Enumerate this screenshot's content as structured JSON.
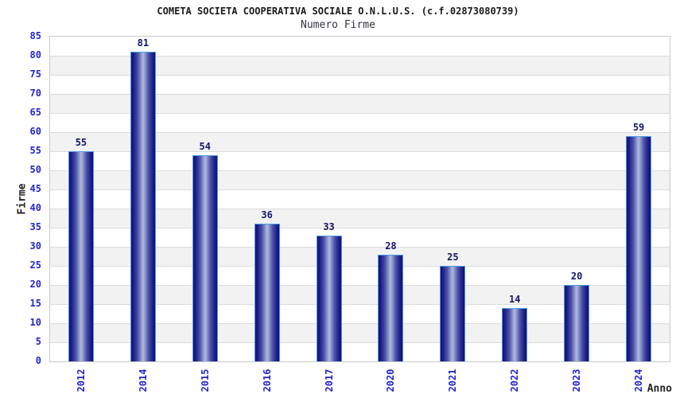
{
  "header": {
    "title": "COMETA SOCIETA COOPERATIVA SOCIALE O.N.L.U.S. (c.f.02873080739)",
    "subtitle": "Numero Firme"
  },
  "chart_data": {
    "type": "bar",
    "title": "COMETA SOCIETA COOPERATIVA SOCIALE O.N.L.U.S. (c.f.02873080739)",
    "subtitle": "Numero Firme",
    "xlabel": "Anno",
    "ylabel": "Firme",
    "categories": [
      "2012",
      "2014",
      "2015",
      "2016",
      "2017",
      "2020",
      "2021",
      "2022",
      "2023",
      "2024"
    ],
    "values": [
      55,
      81,
      54,
      36,
      33,
      28,
      25,
      14,
      20,
      59
    ],
    "yticks": [
      0,
      5,
      10,
      15,
      20,
      25,
      30,
      35,
      40,
      45,
      50,
      55,
      60,
      65,
      70,
      75,
      80,
      85
    ],
    "ylim": [
      0,
      85
    ],
    "ytick_step": 5,
    "grid": "horizontal gridlines with alternating shaded bands",
    "legend": "none",
    "colors": {
      "bar_dark": "#0f0f72",
      "bar_light": "#b2bade",
      "bar_border": "#4a9ce8",
      "tick_text": "#2424ce",
      "value_text": "#15156b",
      "band_gray": "#f2f2f2",
      "gridline": "#dcdcdc",
      "title_text": "#1a1a1a",
      "axis_label_text": "#222222"
    }
  }
}
